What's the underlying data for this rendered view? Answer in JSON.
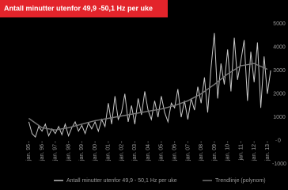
{
  "chart_data": {
    "type": "line",
    "title": "Antall minutter utenfor 49,9 -50,1 Hz per uke",
    "series": [
      {
        "name": "Antall minutter utenfor 49,9 - 50,1 Hz per uke",
        "color": "#c8c8c8",
        "x": [
          1995,
          1995.25,
          1995.5,
          1995.75,
          1996,
          1996.25,
          1996.5,
          1996.75,
          1997,
          1997.25,
          1997.5,
          1997.75,
          1998,
          1998.25,
          1998.5,
          1998.75,
          1999,
          1999.25,
          1999.5,
          1999.75,
          2000,
          2000.25,
          2000.5,
          2000.75,
          2001,
          2001.25,
          2001.5,
          2001.75,
          2002,
          2002.25,
          2002.5,
          2002.75,
          2003,
          2003.25,
          2003.5,
          2003.75,
          2004,
          2004.25,
          2004.5,
          2004.75,
          2005,
          2005.25,
          2005.5,
          2005.75,
          2006,
          2006.25,
          2006.5,
          2006.75,
          2007,
          2007.25,
          2007.5,
          2007.75,
          2008,
          2008.25,
          2008.5,
          2008.75,
          2009,
          2009.25,
          2009.5,
          2009.75,
          2010,
          2010.25,
          2010.5,
          2010.75,
          2011,
          2011.25,
          2011.5,
          2011.75,
          2012,
          2012.25,
          2012.5,
          2012.75,
          2013,
          2013.25
        ],
        "values": [
          800,
          300,
          150,
          600,
          400,
          700,
          200,
          500,
          300,
          600,
          250,
          700,
          200,
          550,
          800,
          400,
          650,
          300,
          750,
          500,
          800,
          400,
          900,
          600,
          1600,
          700,
          1900,
          900,
          1200,
          2000,
          800,
          1500,
          700,
          1800,
          1100,
          2100,
          1300,
          900,
          1700,
          1000,
          1900,
          1200,
          800,
          1600,
          1400,
          2200,
          1000,
          1700,
          900,
          1800,
          1300,
          2300,
          1600,
          2700,
          1200,
          3100,
          4600,
          1800,
          3300,
          2400,
          3900,
          2100,
          4400,
          2600,
          3400,
          4300,
          1700,
          3800,
          2500,
          4200,
          1400,
          3600,
          2000,
          3000
        ]
      },
      {
        "name": "Trendlinje (polynom)",
        "color": "#7a7a7a",
        "x": [
          1995,
          1996,
          1997,
          1998,
          1999,
          2000,
          2001,
          2002,
          2003,
          2004,
          2005,
          2006,
          2007,
          2008,
          2009,
          2010,
          2011,
          2012,
          2013
        ],
        "values": [
          950,
          550,
          450,
          550,
          700,
          850,
          950,
          1050,
          1150,
          1250,
          1350,
          1500,
          1700,
          2000,
          2400,
          2850,
          3200,
          3300,
          3050
        ]
      }
    ],
    "xlim": [
      1994.8,
      2013.6
    ],
    "xticks": [
      {
        "value": 1995,
        "label": "jan. 95"
      },
      {
        "value": 1996,
        "label": "jan. 96"
      },
      {
        "value": 1997,
        "label": "jan. 97"
      },
      {
        "value": 1998,
        "label": "jan. 98"
      },
      {
        "value": 1999,
        "label": "jan. 99"
      },
      {
        "value": 2000,
        "label": "jan. 00"
      },
      {
        "value": 2001,
        "label": "jan. 01"
      },
      {
        "value": 2002,
        "label": "jan. 02"
      },
      {
        "value": 2003,
        "label": "jan. 03"
      },
      {
        "value": 2004,
        "label": "jan. 04"
      },
      {
        "value": 2005,
        "label": "jan. 05"
      },
      {
        "value": 2006,
        "label": "jan. 06"
      },
      {
        "value": 2007,
        "label": "jan. 07"
      },
      {
        "value": 2008,
        "label": "jan. 08"
      },
      {
        "value": 2009,
        "label": "jan. 09"
      },
      {
        "value": 2010,
        "label": "jan. 10"
      },
      {
        "value": 2011,
        "label": "jan. 11"
      },
      {
        "value": 2012,
        "label": "jan. 12"
      },
      {
        "value": 2013,
        "label": "jan. 13"
      }
    ],
    "ylim": [
      -1000,
      5000
    ],
    "yticks": [
      -1000,
      0,
      1000,
      2000,
      3000,
      4000,
      5000
    ]
  }
}
